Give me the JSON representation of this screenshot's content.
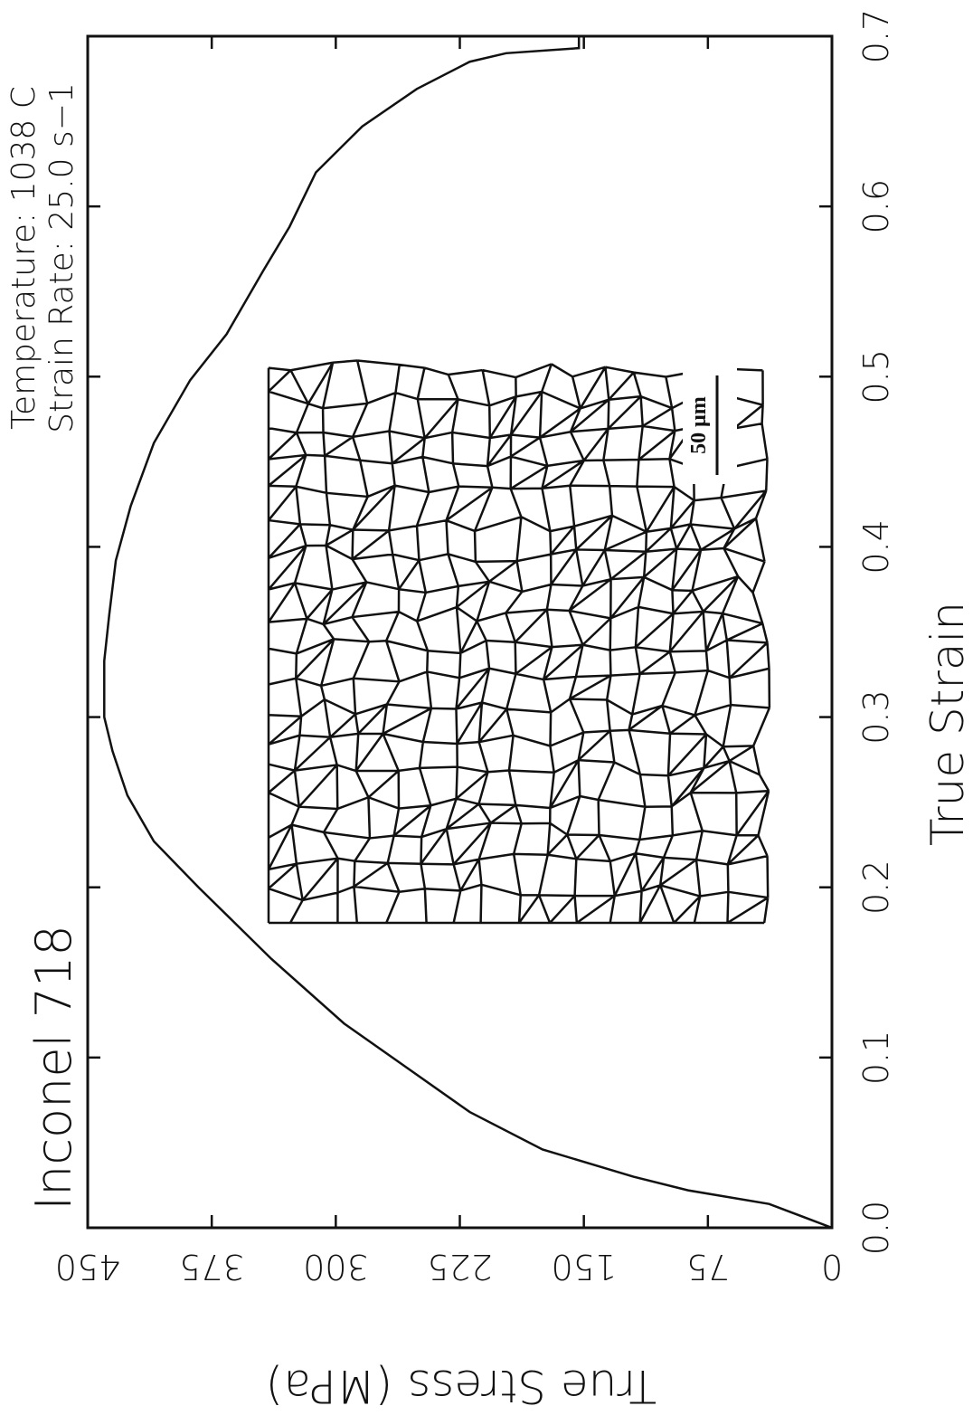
{
  "chart_data": {
    "type": "line",
    "title": "Inconel 718",
    "annotations": [
      "Temperature: 1038 C",
      "Strain Rate: 25.0 s−1"
    ],
    "x_label": "True Strain",
    "y_label": "True Stress (MPa)",
    "x": [
      0,
      0.014,
      0.022,
      0.03,
      0.046,
      0.068,
      0.094,
      0.12,
      0.158,
      0.2,
      0.227,
      0.254,
      0.28,
      0.3,
      0.333,
      0.36,
      0.392,
      0.424,
      0.461,
      0.498,
      0.525,
      0.562,
      0.588,
      0.62,
      0.647,
      0.669,
      0.685,
      0.69,
      0.693,
      0.7
    ],
    "series": [
      {
        "name": "Inconel 718",
        "color": "#111111",
        "values": [
          0,
          38,
          87,
          120,
          175,
          219,
          257,
          295,
          339,
          383,
          410,
          426,
          435,
          440,
          440,
          437,
          433,
          424,
          410,
          388,
          366,
          344,
          328,
          312,
          284,
          251,
          219,
          197,
          153,
          153
        ]
      }
    ],
    "xlim": [
      0,
      0.7
    ],
    "xticks": [
      {
        "value": 0,
        "label": "0.0"
      },
      0.1,
      0.2,
      0.3,
      0.4,
      0.5,
      0.6,
      0.7
    ],
    "ylim": [
      0,
      450
    ],
    "yticks": [
      0,
      75,
      150,
      225,
      300,
      375,
      450
    ],
    "inset": {
      "scale_label": "50 μm"
    }
  }
}
